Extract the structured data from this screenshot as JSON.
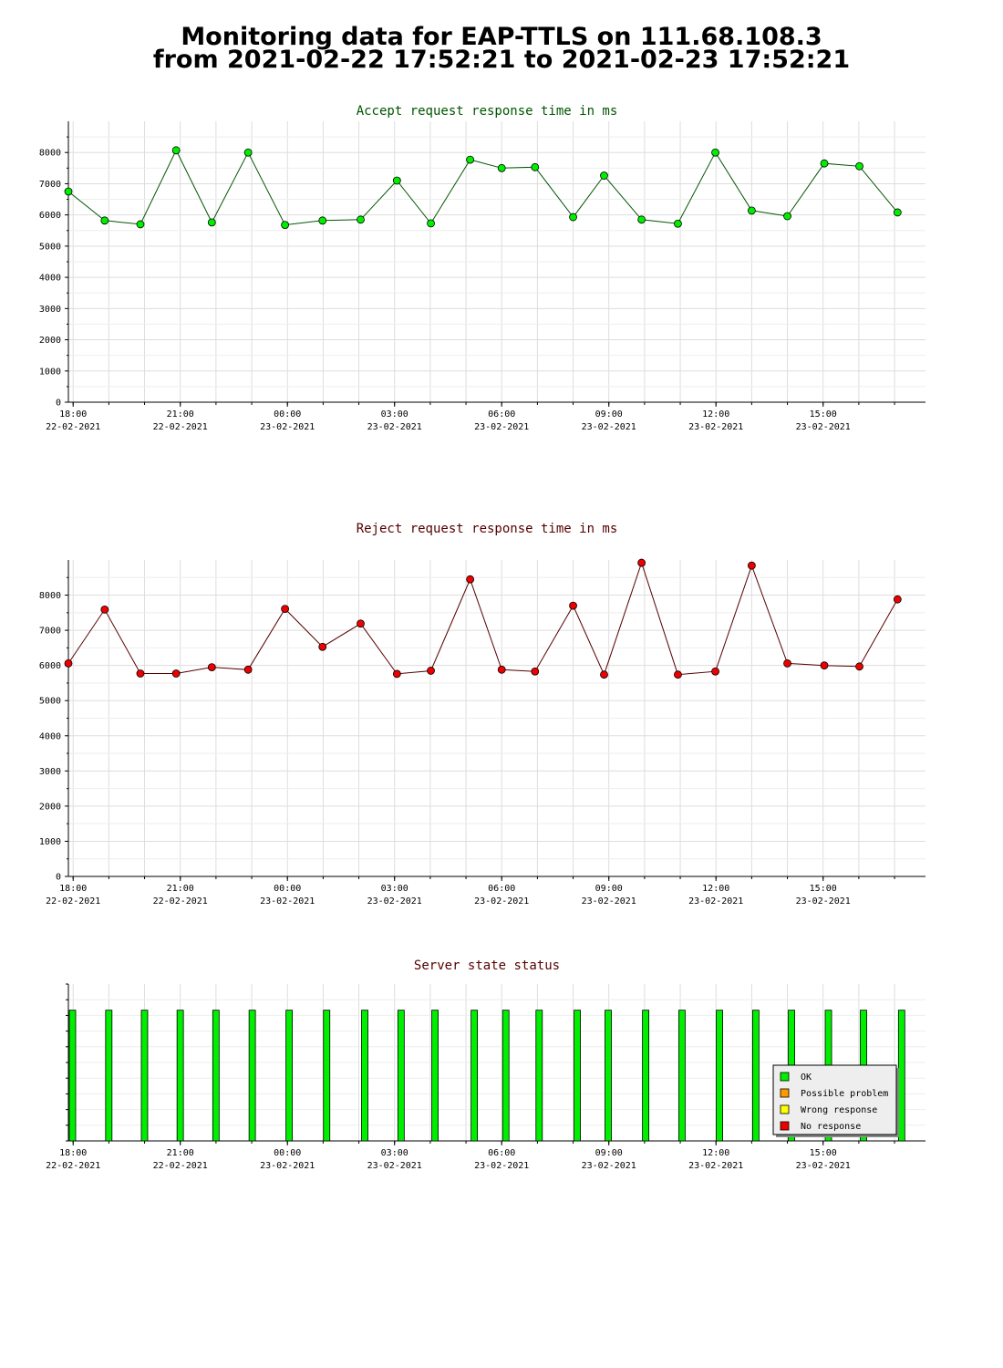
{
  "page": {
    "title_line1": "Monitoring data for EAP-TTLS on 111.68.108.3",
    "title_line2": "from 2021-02-22 17:52:21 to 2021-02-23 17:52:21"
  },
  "chart_data": [
    {
      "type": "line",
      "title": "Accept request response time in ms",
      "title_color": "#005500",
      "line_color": "#005500",
      "marker_color": "#00ee00",
      "xlabel": "",
      "ylabel": "",
      "x_range": [
        "2021-02-22 17:52",
        "2021-02-23 17:52"
      ],
      "ylim": [
        0,
        9000
      ],
      "y_ticks": [
        0,
        1000,
        2000,
        3000,
        4000,
        5000,
        6000,
        7000,
        8000
      ],
      "x_ticks": [
        {
          "time": "2021-02-22 18:00",
          "label1": "18:00",
          "label2": "22-02-2021"
        },
        {
          "time": "2021-02-22 21:00",
          "label1": "21:00",
          "label2": "22-02-2021"
        },
        {
          "time": "2021-02-23 00:00",
          "label1": "00:00",
          "label2": "23-02-2021"
        },
        {
          "time": "2021-02-23 03:00",
          "label1": "03:00",
          "label2": "23-02-2021"
        },
        {
          "time": "2021-02-23 06:00",
          "label1": "06:00",
          "label2": "23-02-2021"
        },
        {
          "time": "2021-02-23 09:00",
          "label1": "09:00",
          "label2": "23-02-2021"
        },
        {
          "time": "2021-02-23 12:00",
          "label1": "12:00",
          "label2": "23-02-2021"
        },
        {
          "time": "2021-02-23 15:00",
          "label1": "15:00",
          "label2": "23-02-2021"
        }
      ],
      "grid": true,
      "points": [
        {
          "x": "2021-02-22 17:52",
          "y": 6750
        },
        {
          "x": "2021-02-22 18:53",
          "y": 5820
        },
        {
          "x": "2021-02-22 19:53",
          "y": 5700
        },
        {
          "x": "2021-02-22 20:53",
          "y": 8070
        },
        {
          "x": "2021-02-22 21:53",
          "y": 5760
        },
        {
          "x": "2021-02-22 22:54",
          "y": 8000
        },
        {
          "x": "2021-02-22 23:56",
          "y": 5680
        },
        {
          "x": "2021-02-23 00:59",
          "y": 5820
        },
        {
          "x": "2021-02-23 02:03",
          "y": 5850
        },
        {
          "x": "2021-02-23 03:04",
          "y": 7100
        },
        {
          "x": "2021-02-23 04:01",
          "y": 5730
        },
        {
          "x": "2021-02-23 05:07",
          "y": 7770
        },
        {
          "x": "2021-02-23 06:00",
          "y": 7500
        },
        {
          "x": "2021-02-23 06:56",
          "y": 7530
        },
        {
          "x": "2021-02-23 08:00",
          "y": 5930
        },
        {
          "x": "2021-02-23 08:52",
          "y": 7260
        },
        {
          "x": "2021-02-23 09:55",
          "y": 5850
        },
        {
          "x": "2021-02-23 10:56",
          "y": 5720
        },
        {
          "x": "2021-02-23 11:59",
          "y": 8000
        },
        {
          "x": "2021-02-23 13:00",
          "y": 6140
        },
        {
          "x": "2021-02-23 14:00",
          "y": 5960
        },
        {
          "x": "2021-02-23 15:02",
          "y": 7650
        },
        {
          "x": "2021-02-23 16:01",
          "y": 7560
        },
        {
          "x": "2021-02-23 17:05",
          "y": 6080
        }
      ]
    },
    {
      "type": "line",
      "title": "Reject request response time in ms",
      "title_color": "#550000",
      "line_color": "#550000",
      "marker_color": "#ee0000",
      "xlabel": "",
      "ylabel": "",
      "x_range": [
        "2021-02-22 17:52",
        "2021-02-23 17:52"
      ],
      "ylim": [
        0,
        9000
      ],
      "y_ticks": [
        0,
        1000,
        2000,
        3000,
        4000,
        5000,
        6000,
        7000,
        8000
      ],
      "x_ticks": [
        {
          "time": "2021-02-22 18:00",
          "label1": "18:00",
          "label2": "22-02-2021"
        },
        {
          "time": "2021-02-22 21:00",
          "label1": "21:00",
          "label2": "22-02-2021"
        },
        {
          "time": "2021-02-23 00:00",
          "label1": "00:00",
          "label2": "23-02-2021"
        },
        {
          "time": "2021-02-23 03:00",
          "label1": "03:00",
          "label2": "23-02-2021"
        },
        {
          "time": "2021-02-23 06:00",
          "label1": "06:00",
          "label2": "23-02-2021"
        },
        {
          "time": "2021-02-23 09:00",
          "label1": "09:00",
          "label2": "23-02-2021"
        },
        {
          "time": "2021-02-23 12:00",
          "label1": "12:00",
          "label2": "23-02-2021"
        },
        {
          "time": "2021-02-23 15:00",
          "label1": "15:00",
          "label2": "23-02-2021"
        }
      ],
      "grid": true,
      "points": [
        {
          "x": "2021-02-22 17:52",
          "y": 6060
        },
        {
          "x": "2021-02-22 18:53",
          "y": 7590
        },
        {
          "x": "2021-02-22 19:53",
          "y": 5770
        },
        {
          "x": "2021-02-22 20:53",
          "y": 5770
        },
        {
          "x": "2021-02-22 21:53",
          "y": 5950
        },
        {
          "x": "2021-02-22 22:54",
          "y": 5880
        },
        {
          "x": "2021-02-22 23:56",
          "y": 7610
        },
        {
          "x": "2021-02-23 00:59",
          "y": 6530
        },
        {
          "x": "2021-02-23 02:03",
          "y": 7190
        },
        {
          "x": "2021-02-23 03:04",
          "y": 5760
        },
        {
          "x": "2021-02-23 04:01",
          "y": 5850
        },
        {
          "x": "2021-02-23 05:07",
          "y": 8450
        },
        {
          "x": "2021-02-23 06:00",
          "y": 5880
        },
        {
          "x": "2021-02-23 06:56",
          "y": 5830
        },
        {
          "x": "2021-02-23 08:00",
          "y": 7700
        },
        {
          "x": "2021-02-23 08:52",
          "y": 5740
        },
        {
          "x": "2021-02-23 09:55",
          "y": 8920
        },
        {
          "x": "2021-02-23 10:56",
          "y": 5740
        },
        {
          "x": "2021-02-23 11:59",
          "y": 5830
        },
        {
          "x": "2021-02-23 13:00",
          "y": 8840
        },
        {
          "x": "2021-02-23 14:00",
          "y": 6060
        },
        {
          "x": "2021-02-23 15:02",
          "y": 6000
        },
        {
          "x": "2021-02-23 16:01",
          "y": 5970
        },
        {
          "x": "2021-02-23 17:05",
          "y": 7880
        }
      ]
    },
    {
      "type": "bar",
      "title": "Server state status",
      "title_color": "#550000",
      "xlabel": "",
      "ylabel": "",
      "x_range": [
        "2021-02-22 17:52",
        "2021-02-23 17:52"
      ],
      "ylim": [
        0,
        1.2
      ],
      "x_ticks": [
        {
          "time": "2021-02-22 18:00",
          "label1": "18:00",
          "label2": "22-02-2021"
        },
        {
          "time": "2021-02-22 21:00",
          "label1": "21:00",
          "label2": "22-02-2021"
        },
        {
          "time": "2021-02-23 00:00",
          "label1": "00:00",
          "label2": "23-02-2021"
        },
        {
          "time": "2021-02-23 03:00",
          "label1": "03:00",
          "label2": "23-02-2021"
        },
        {
          "time": "2021-02-23 06:00",
          "label1": "06:00",
          "label2": "23-02-2021"
        },
        {
          "time": "2021-02-23 09:00",
          "label1": "09:00",
          "label2": "23-02-2021"
        },
        {
          "time": "2021-02-23 12:00",
          "label1": "12:00",
          "label2": "23-02-2021"
        },
        {
          "time": "2021-02-23 15:00",
          "label1": "15:00",
          "label2": "23-02-2021"
        }
      ],
      "grid": true,
      "legend_position": "bottom-right",
      "legend": [
        {
          "label": "OK",
          "color": "#00ee00"
        },
        {
          "label": "Possible problem",
          "color": "#ff9900"
        },
        {
          "label": "Wrong response",
          "color": "#ffff00"
        },
        {
          "label": "No response",
          "color": "#ee0000"
        }
      ],
      "bars": [
        {
          "x": "2021-02-22 17:52",
          "state": "OK",
          "value": 1
        },
        {
          "x": "2021-02-22 18:53",
          "state": "OK",
          "value": 1
        },
        {
          "x": "2021-02-22 19:53",
          "state": "OK",
          "value": 1
        },
        {
          "x": "2021-02-22 20:53",
          "state": "OK",
          "value": 1
        },
        {
          "x": "2021-02-22 21:53",
          "state": "OK",
          "value": 1
        },
        {
          "x": "2021-02-22 22:54",
          "state": "OK",
          "value": 1
        },
        {
          "x": "2021-02-22 23:56",
          "state": "OK",
          "value": 1
        },
        {
          "x": "2021-02-23 00:59",
          "state": "OK",
          "value": 1
        },
        {
          "x": "2021-02-23 02:03",
          "state": "OK",
          "value": 1
        },
        {
          "x": "2021-02-23 03:04",
          "state": "OK",
          "value": 1
        },
        {
          "x": "2021-02-23 04:01",
          "state": "OK",
          "value": 1
        },
        {
          "x": "2021-02-23 05:07",
          "state": "OK",
          "value": 1
        },
        {
          "x": "2021-02-23 06:00",
          "state": "OK",
          "value": 1
        },
        {
          "x": "2021-02-23 06:56",
          "state": "OK",
          "value": 1
        },
        {
          "x": "2021-02-23 08:00",
          "state": "OK",
          "value": 1
        },
        {
          "x": "2021-02-23 08:52",
          "state": "OK",
          "value": 1
        },
        {
          "x": "2021-02-23 09:55",
          "state": "OK",
          "value": 1
        },
        {
          "x": "2021-02-23 10:56",
          "state": "OK",
          "value": 1
        },
        {
          "x": "2021-02-23 11:59",
          "state": "OK",
          "value": 1
        },
        {
          "x": "2021-02-23 13:00",
          "state": "OK",
          "value": 1
        },
        {
          "x": "2021-02-23 14:00",
          "state": "OK",
          "value": 1
        },
        {
          "x": "2021-02-23 15:02",
          "state": "OK",
          "value": 1
        },
        {
          "x": "2021-02-23 16:01",
          "state": "OK",
          "value": 1
        },
        {
          "x": "2021-02-23 17:05",
          "state": "OK",
          "value": 1
        }
      ]
    }
  ]
}
